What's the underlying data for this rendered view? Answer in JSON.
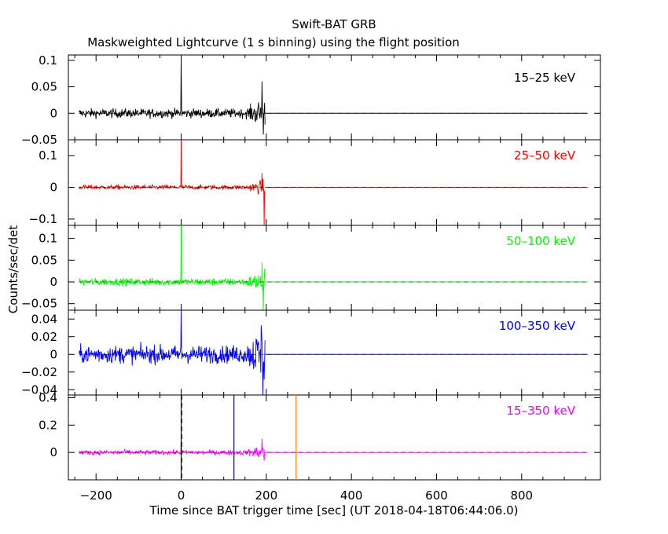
{
  "title": "Swift-BAT GRB",
  "subtitle": "Maskweighted Lightcurve (1 s binning) using the flight position",
  "ylabel": "Counts/sec/det",
  "xlabel": "Time since BAT trigger time [sec] (UT 2018-04-18T06:44:06.0)",
  "chart_data": {
    "type": "line",
    "xlim": [
      -265,
      985
    ],
    "x_ticks": [
      -200,
      0,
      200,
      400,
      600,
      800
    ],
    "x_tick_labels": [
      "−200",
      "0",
      "200",
      "400",
      "600",
      "800"
    ],
    "panels": [
      {
        "band": "15–25 keV",
        "color": "#000000",
        "ylim": [
          -0.05,
          0.11
        ],
        "y_ticks": [
          -0.05,
          0,
          0.05,
          0.1
        ],
        "y_tick_labels": [
          "−0.05",
          "0",
          "0.05",
          "0.1"
        ],
        "noise_start": -240,
        "noise_end": 197,
        "noise_amp": 0.006,
        "spikes": [
          {
            "t": 0,
            "v": 0.11
          },
          {
            "t": 190,
            "v": 0.06
          },
          {
            "t": 193,
            "v": -0.04
          }
        ],
        "flat_until": 955
      },
      {
        "band": "25–50 keV",
        "color": "#ff0000",
        "ylim": [
          -0.12,
          0.15
        ],
        "y_ticks": [
          -0.1,
          0,
          0.1
        ],
        "y_tick_labels": [
          "−0.1",
          "0",
          "0.1"
        ],
        "noise_start": -240,
        "noise_end": 197,
        "noise_amp": 0.005,
        "spikes": [
          {
            "t": 0,
            "v": 0.15
          },
          {
            "t": 190,
            "v": 0.045
          },
          {
            "t": 195,
            "v": -0.12
          }
        ],
        "flat_until": 955
      },
      {
        "band": "50–100 keV",
        "color": "#00ff00",
        "ylim": [
          -0.065,
          0.13
        ],
        "y_ticks": [
          -0.05,
          0,
          0.05,
          0.1
        ],
        "y_tick_labels": [
          "−0.05",
          "0",
          "0.05",
          "0.1"
        ],
        "noise_start": -240,
        "noise_end": 197,
        "noise_amp": 0.006,
        "spikes": [
          {
            "t": 0,
            "v": 0.13
          },
          {
            "t": 190,
            "v": 0.045
          },
          {
            "t": 193,
            "v": -0.065
          }
        ],
        "flat_until": 955
      },
      {
        "band": "100–350 keV",
        "color": "#0000ff",
        "ylim": [
          -0.046,
          0.05
        ],
        "y_ticks": [
          -0.04,
          -0.02,
          0,
          0.02,
          0.04
        ],
        "y_tick_labels": [
          "−0.04",
          "−0.02",
          "0",
          "0.02",
          "0.04"
        ],
        "noise_start": -240,
        "noise_end": 197,
        "noise_amp": 0.007,
        "spikes": [
          {
            "t": 0,
            "v": 0.05
          },
          {
            "t": 188,
            "v": 0.033
          },
          {
            "t": 192,
            "v": -0.046
          }
        ],
        "flat_until": 955
      },
      {
        "band": "15–350 keV",
        "color": "#ff00ff",
        "ylim": [
          -0.2,
          0.42
        ],
        "y_ticks": [
          0,
          0.2,
          0.4
        ],
        "y_tick_labels": [
          "0",
          "0.2",
          "0.4"
        ],
        "noise_start": -240,
        "noise_end": 197,
        "noise_amp": 0.012,
        "spikes": [
          {
            "t": 0,
            "v": 0.12
          },
          {
            "t": 190,
            "v": 0.1
          },
          {
            "t": 195,
            "v": -0.06
          }
        ],
        "flat_until": 955,
        "markers": [
          {
            "t": 0,
            "color": "#000000",
            "style": "solid"
          },
          {
            "t": 2,
            "color": "#00aa00",
            "style": "dashed"
          },
          {
            "t": 124,
            "color": "#0000cc",
            "style": "solid"
          },
          {
            "t": 270,
            "color": "#ff8800",
            "style": "solid"
          }
        ]
      }
    ]
  }
}
